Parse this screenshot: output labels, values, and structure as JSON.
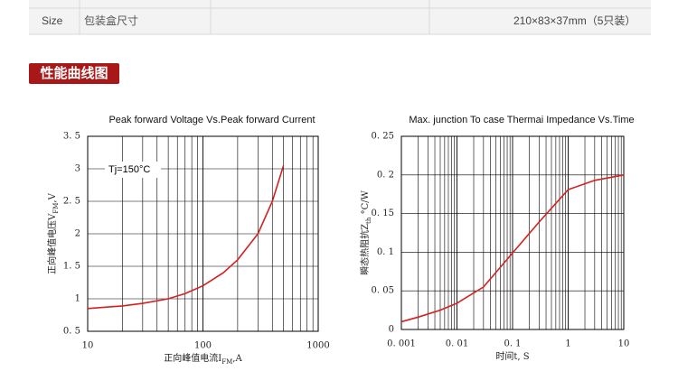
{
  "table": {
    "rows": [
      [
        "Size",
        "包装盒尺寸",
        "210×83×37mm（5只装）"
      ]
    ]
  },
  "section_title": "性能曲线图",
  "chart_data": [
    {
      "type": "line",
      "title": "Peak forward Voltage Vs.Peak forward Current",
      "xlabel": [
        "正向峰值电流I",
        "FM",
        ",A"
      ],
      "ylabel": [
        "正向峰值电压V",
        "FM",
        ",V"
      ],
      "annotation": "Tj=150°C",
      "x": [
        10,
        20,
        30,
        50,
        70,
        100,
        150,
        200,
        300,
        400,
        500
      ],
      "series": [
        {
          "color": "#d42020",
          "values": [
            0.85,
            0.89,
            0.93,
            1.0,
            1.08,
            1.2,
            1.4,
            1.6,
            2.0,
            2.5,
            3.05
          ]
        }
      ],
      "xlog": true,
      "xlim": [
        10,
        1000
      ],
      "xticks": [
        10,
        100,
        1000
      ],
      "ylim": [
        0.5,
        3.5
      ],
      "yticks": [
        {
          "value": 0.5,
          "label": "0. 5"
        },
        1,
        {
          "value": 1.5,
          "label": "1. 5"
        },
        2,
        {
          "value": 2.5,
          "label": "2. 5"
        },
        3,
        {
          "value": 3.5,
          "label": "3. 5"
        }
      ],
      "grid": true
    },
    {
      "type": "line",
      "title": "Max. junction To case Thermai Impedance Vs.Time",
      "xlabel": [
        "时间t, S"
      ],
      "ylabel": [
        "瞬态热阻抗Z",
        "th",
        " °C/W"
      ],
      "x": [
        0.001,
        0.002,
        0.005,
        0.01,
        0.03,
        0.1,
        0.3,
        1,
        3,
        10
      ],
      "series": [
        {
          "color": "#d42020",
          "values": [
            0.01,
            0.016,
            0.025,
            0.034,
            0.055,
            0.099,
            0.139,
            0.181,
            0.193,
            0.2
          ]
        }
      ],
      "xlog": true,
      "xlim": [
        0.001,
        10
      ],
      "xticks": [
        {
          "value": 0.001,
          "label": "0. 001"
        },
        {
          "value": 0.01,
          "label": "0. 01"
        },
        {
          "value": 0.1,
          "label": "0. 1"
        },
        1,
        10
      ],
      "ylim": [
        0,
        0.25
      ],
      "yticks": [
        0,
        {
          "value": 0.05,
          "label": "0. 05"
        },
        {
          "value": 0.1,
          "label": "0. 1"
        },
        {
          "value": 0.15,
          "label": "0. 15"
        },
        {
          "value": 0.2,
          "label": "0. 2"
        },
        {
          "value": 0.25,
          "label": "0. 25"
        }
      ],
      "grid": true
    }
  ]
}
